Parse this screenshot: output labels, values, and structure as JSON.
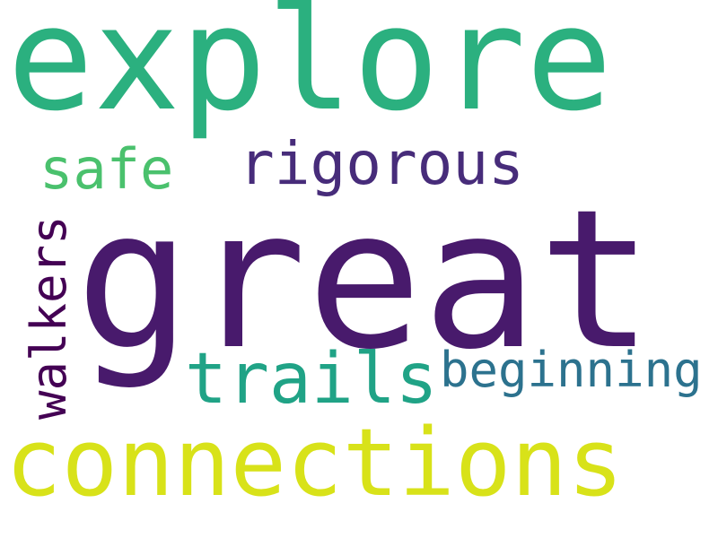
{
  "words": {
    "explore": {
      "text": "explore",
      "color": "#2bb07f"
    },
    "safe": {
      "text": "safe",
      "color": "#4ac16d"
    },
    "rigorous": {
      "text": "rigorous",
      "color": "#472c7a"
    },
    "great": {
      "text": "great",
      "color": "#481a6c"
    },
    "walkers": {
      "text": "walkers",
      "color": "#440154"
    },
    "trails": {
      "text": "trails",
      "color": "#20a386"
    },
    "beginning": {
      "text": "beginning",
      "color": "#2c728e"
    },
    "connections": {
      "text": "connections",
      "color": "#d8e219"
    }
  }
}
